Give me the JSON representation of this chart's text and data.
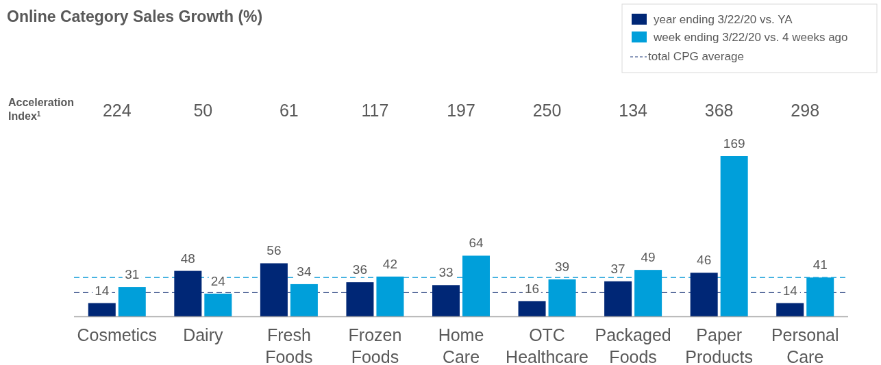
{
  "chart_data": {
    "type": "bar",
    "title": "Online Category Sales Growth (%)",
    "categories": [
      "Cosmetics",
      "Dairy",
      "Fresh Foods",
      "Frozen Foods",
      "Home Care",
      "OTC Healthcare",
      "Packaged Foods",
      "Paper Products",
      "Personal Care"
    ],
    "series": [
      {
        "name": "year ending 3/22/20 vs. YA",
        "color": "#002776",
        "values": [
          14,
          48,
          56,
          36,
          33,
          16,
          37,
          46,
          14
        ]
      },
      {
        "name": "week ending 3/22/20 vs. 4 weeks ago",
        "color": "#009fda",
        "values": [
          31,
          24,
          34,
          42,
          64,
          39,
          49,
          169,
          41
        ]
      }
    ],
    "data_labels": true,
    "ref_lines": [
      {
        "axis": "y",
        "value": 25,
        "label": "total CPG average",
        "color": "#1f3a7a",
        "line_style": "dashed"
      },
      {
        "axis": "y",
        "value": 41,
        "color": "#2aa7dc",
        "line_style": "dashed"
      }
    ],
    "annotations": [
      "Acceleration Index$^{1}$",
      "224",
      "50",
      "61",
      "117",
      "197",
      "250",
      "134",
      "368",
      "298"
    ],
    "legend": "top right"
  }
}
